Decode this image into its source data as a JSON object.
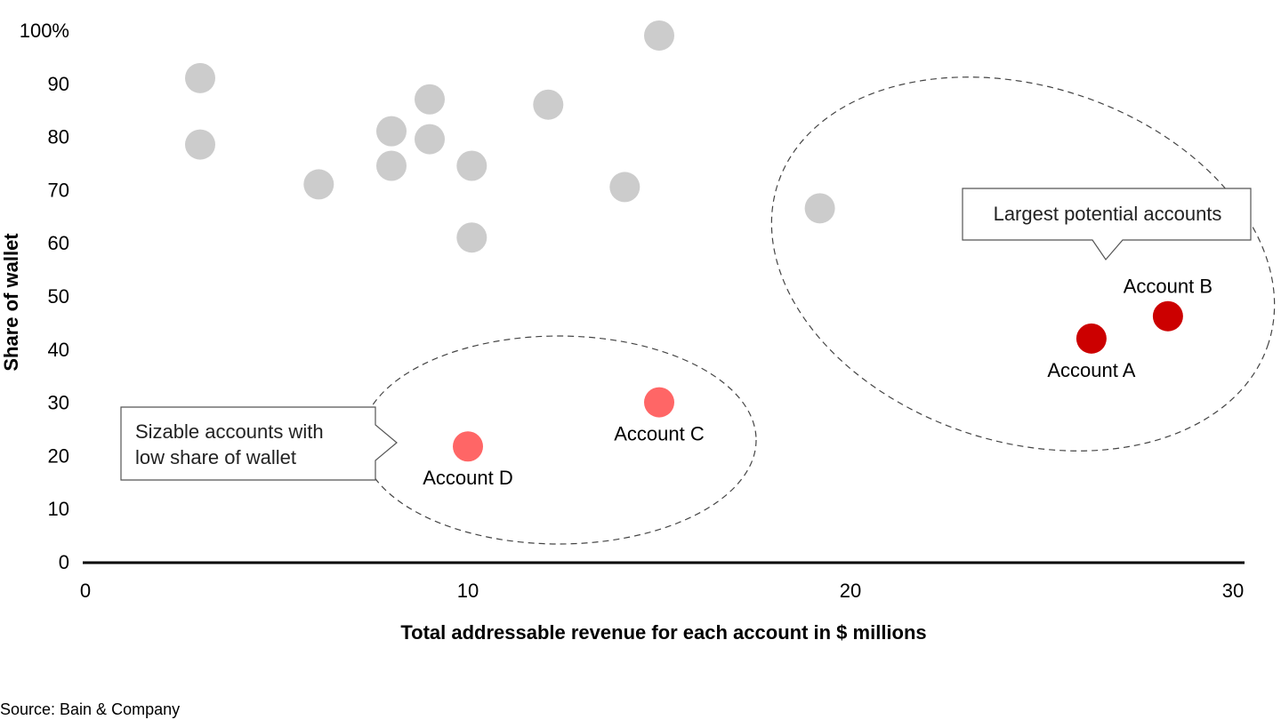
{
  "chart_data": {
    "type": "scatter",
    "xlabel": "Total addressable revenue for each account in $ millions",
    "ylabel": "Share of wallet",
    "xlim": [
      0,
      30
    ],
    "ylim": [
      0,
      100
    ],
    "x_ticks": [
      "0",
      "10",
      "20",
      "30"
    ],
    "y_ticks": [
      "0",
      "10",
      "20",
      "30",
      "40",
      "50",
      "60",
      "70",
      "80",
      "90",
      "100%"
    ],
    "grid": false,
    "colors": {
      "other": "#cccccc",
      "target_large": "#cc0000",
      "target_sizable": "#ff6666",
      "axis": "#000000",
      "outline": "#444444"
    },
    "points": [
      {
        "x": 3,
        "y": 91,
        "group": "other"
      },
      {
        "x": 3,
        "y": 78.5,
        "group": "other"
      },
      {
        "x": 6.1,
        "y": 71,
        "group": "other"
      },
      {
        "x": 8,
        "y": 81,
        "group": "other"
      },
      {
        "x": 8,
        "y": 74.5,
        "group": "other"
      },
      {
        "x": 9,
        "y": 87,
        "group": "other"
      },
      {
        "x": 9,
        "y": 79.5,
        "group": "other"
      },
      {
        "x": 10.1,
        "y": 74.5,
        "group": "other"
      },
      {
        "x": 10.1,
        "y": 61,
        "group": "other"
      },
      {
        "x": 12.1,
        "y": 86,
        "group": "other"
      },
      {
        "x": 15,
        "y": 99,
        "group": "other"
      },
      {
        "x": 14.1,
        "y": 70.5,
        "group": "other"
      },
      {
        "x": 19.2,
        "y": 66.5,
        "group": "other"
      },
      {
        "x": 26.3,
        "y": 42,
        "group": "target_large",
        "label": "Account A",
        "label_pos": "below"
      },
      {
        "x": 28.3,
        "y": 46.2,
        "group": "target_large",
        "label": "Account B",
        "label_pos": "above"
      },
      {
        "x": 15,
        "y": 30,
        "group": "target_sizable",
        "label": "Account C",
        "label_pos": "below"
      },
      {
        "x": 10,
        "y": 21.7,
        "group": "target_sizable",
        "label": "Account D",
        "label_pos": "below"
      }
    ],
    "annotations": [
      {
        "text_lines": [
          "Largest potential accounts"
        ]
      },
      {
        "text_lines": [
          "Sizable accounts with",
          "low share of wallet"
        ]
      }
    ]
  },
  "source": "Source: Bain & Company"
}
